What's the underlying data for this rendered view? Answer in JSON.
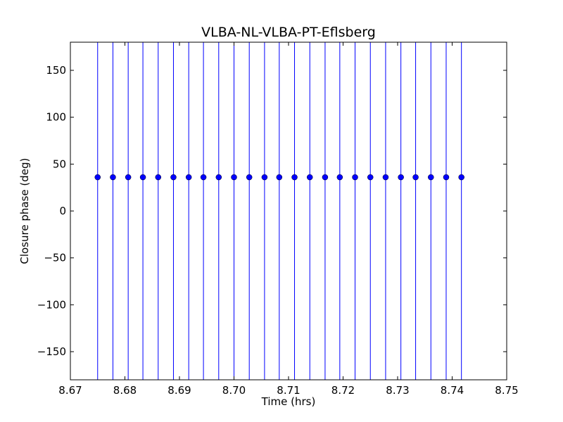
{
  "chart_data": {
    "type": "scatter",
    "title": "VLBA-NL-VLBA-PT-Eflsberg",
    "xlabel": "Time (hrs)",
    "ylabel": "Closure phase (deg)",
    "xlim": [
      8.67,
      8.75
    ],
    "ylim": [
      -180,
      180
    ],
    "xticks": [
      8.67,
      8.68,
      8.69,
      8.7,
      8.71,
      8.72,
      8.73,
      8.74,
      8.75
    ],
    "xtick_labels": [
      "8.67",
      "8.68",
      "8.69",
      "8.70",
      "8.71",
      "8.72",
      "8.73",
      "8.74",
      "8.75"
    ],
    "yticks": [
      150,
      100,
      50,
      0,
      -50,
      -100,
      -150
    ],
    "ytick_labels": [
      "150",
      "100",
      "50",
      "0",
      "−50",
      "−100",
      "−150"
    ],
    "grid": false,
    "series": [
      {
        "marker": "circle",
        "color": "#0000ff",
        "errorbars": "vertical, spanning full y range",
        "x": [
          8.675,
          8.6778,
          8.6806,
          8.6833,
          8.6861,
          8.6889,
          8.6917,
          8.6944,
          8.6972,
          8.7,
          8.7028,
          8.7056,
          8.7083,
          8.7111,
          8.7139,
          8.7167,
          8.7194,
          8.7222,
          8.725,
          8.7278,
          8.7306,
          8.7333,
          8.7361,
          8.7389,
          8.7417
        ],
        "y": [
          36,
          36,
          36,
          36,
          36,
          36,
          36,
          36,
          36,
          36,
          36,
          36,
          36,
          36,
          36,
          36,
          36,
          36,
          36,
          36,
          36,
          36,
          36,
          36,
          36
        ]
      }
    ]
  }
}
